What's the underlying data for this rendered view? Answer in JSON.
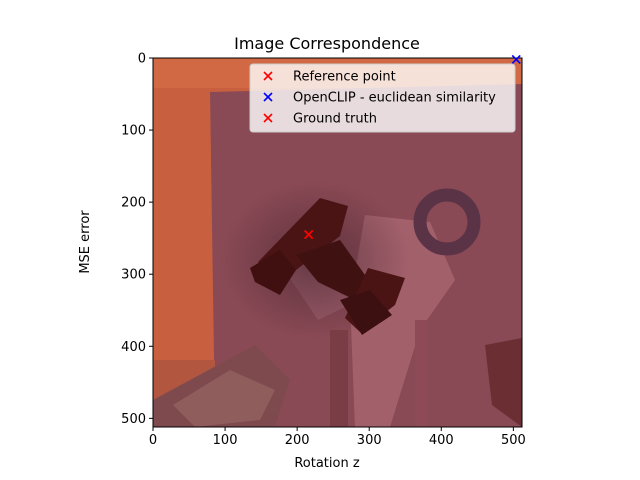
{
  "chart_data": {
    "type": "scatter",
    "title": "Image Correspondence",
    "xlabel": "Rotation z",
    "ylabel": "MSE error",
    "xlim": [
      -20,
      512
    ],
    "ylim": [
      512,
      0
    ],
    "x_ticks": [
      0,
      100,
      200,
      300,
      400,
      500
    ],
    "y_ticks": [
      0,
      100,
      200,
      300,
      400,
      500
    ],
    "grid": false,
    "legend_position": "top-right",
    "series": [
      {
        "name": "Reference point",
        "marker": "x",
        "color": "#ff0000",
        "points": [
          [
            216,
            245
          ]
        ]
      },
      {
        "name": "OpenCLIP - euclidean similarity",
        "marker": "x",
        "color": "#0000ff",
        "points": [
          [
            504,
            2
          ]
        ]
      },
      {
        "name": "Ground truth",
        "marker": "x",
        "color": "#ff0000",
        "points": [
          [
            216,
            245
          ]
        ]
      }
    ],
    "background_image": "reddish photo of a robotic arm workspace"
  }
}
